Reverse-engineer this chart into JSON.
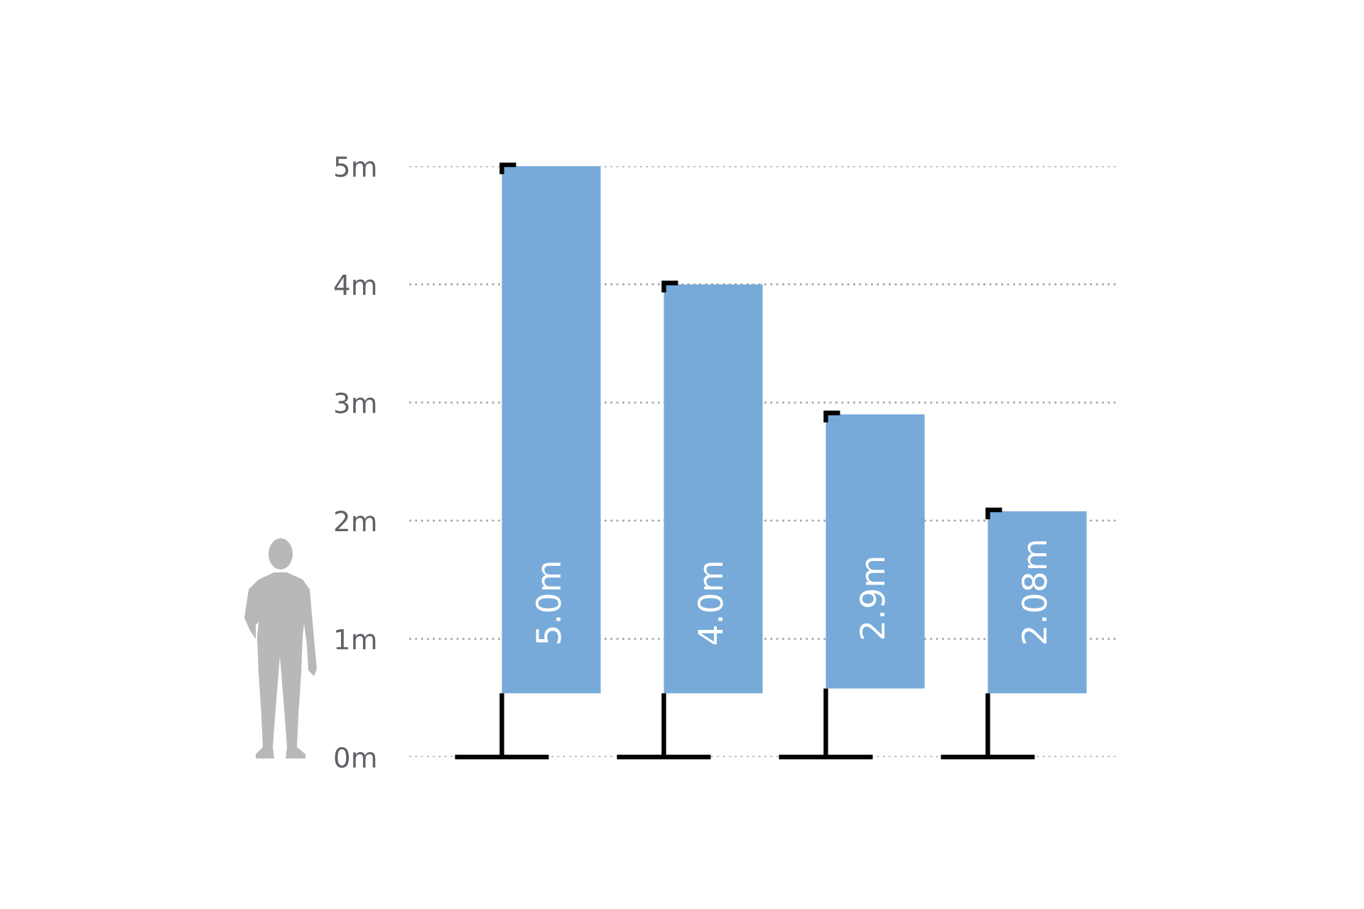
{
  "chart_data": {
    "type": "bar",
    "categories": [
      null,
      null,
      null,
      null
    ],
    "base": [
      0.54,
      0.54,
      0.58,
      0.54
    ],
    "values": [
      4.46,
      3.46,
      2.32,
      1.54
    ],
    "color": "#77aad9",
    "value_labels": [
      "5.0m",
      "4.0m",
      "2.9m",
      "2.08m"
    ],
    "ylim": [
      0,
      5
    ],
    "yticks": [
      {
        "value": 0,
        "label": "0m"
      },
      {
        "value": 1,
        "label": "1m"
      },
      {
        "value": 2,
        "label": "2m"
      },
      {
        "value": 3,
        "label": "3m"
      },
      {
        "value": 4,
        "label": "4m"
      },
      {
        "value": 5,
        "label": "5m"
      }
    ],
    "grid": "y",
    "tick_labels": "y"
  }
}
